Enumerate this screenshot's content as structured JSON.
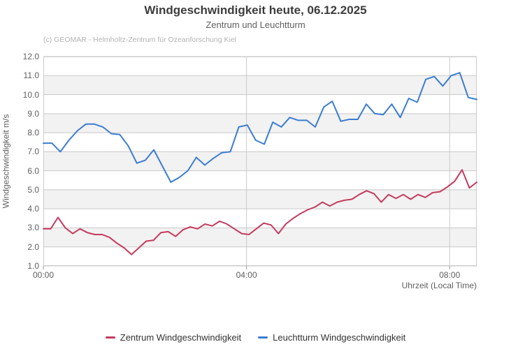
{
  "header": {
    "title": "Windgeschwindigkeit heute, 06.12.2025",
    "subtitle": "Zentrum und Leuchtturm",
    "credits": "(c) GEOMAR - Helmholtz-Zentrum für Ozeanforschung Kiel"
  },
  "colors": {
    "zentrum_line": "#c43b5f",
    "leuchtturm_line": "#3b7cd2",
    "band_fill": "#f2f2f2",
    "gridline": "#c9c9c9",
    "plot_border": "#cccccc",
    "tick": "#999999"
  },
  "chart_data": {
    "type": "line",
    "title": "Windgeschwindigkeit heute, 06.12.2025",
    "subtitle": "Zentrum und Leuchtturm",
    "xlabel": "Uhrzeit (Local Time)",
    "ylabel": "Windgeschwindigkeit m/s",
    "ylim": [
      1.0,
      12.0
    ],
    "grid": true,
    "alternating_bands": true,
    "legend_position": "bottom-center",
    "time_range": [
      "00:00",
      "08:30"
    ],
    "x_axis": {
      "title": "Uhrzeit (Local Time)",
      "tick_labels": [
        "00:00",
        "04:00",
        "08:00"
      ],
      "tick_minutes": [
        0,
        240,
        480
      ],
      "total_minutes": 512
    },
    "y_axis": {
      "title": "Windgeschwindigkeit m/s",
      "min": 1.0,
      "max": 12.0,
      "tick_step": 1.0,
      "tick_labels": [
        "1.0",
        "2.0",
        "3.0",
        "4.0",
        "5.0",
        "6.0",
        "7.0",
        "8.0",
        "9.0",
        "10.0",
        "11.0",
        "12.0"
      ]
    },
    "series": [
      {
        "name": "Zentrum Windgeschwindigkeit",
        "color": "#c43b5f",
        "values": [
          2.95,
          2.95,
          3.55,
          3.0,
          2.7,
          2.95,
          2.75,
          2.65,
          2.65,
          2.5,
          2.2,
          1.95,
          1.6,
          1.95,
          2.3,
          2.35,
          2.75,
          2.8,
          2.55,
          2.9,
          3.05,
          2.95,
          3.2,
          3.1,
          3.35,
          3.2,
          2.95,
          2.7,
          2.65,
          2.95,
          3.25,
          3.15,
          2.7,
          3.2,
          3.5,
          3.75,
          3.95,
          4.1,
          4.35,
          4.15,
          4.35,
          4.45,
          4.5,
          4.75,
          4.95,
          4.8,
          4.35,
          4.75,
          4.55,
          4.75,
          4.5,
          4.75,
          4.6,
          4.85,
          4.9,
          5.15,
          5.45,
          6.05,
          5.1,
          5.4
        ]
      },
      {
        "name": "Leuchtturm Windgeschwindigkeit",
        "color": "#3b7cd2",
        "values": [
          7.45,
          7.45,
          7.0,
          7.6,
          8.1,
          8.45,
          8.45,
          8.3,
          7.95,
          7.9,
          7.3,
          6.4,
          6.55,
          7.1,
          6.25,
          5.4,
          5.65,
          6.0,
          6.7,
          6.3,
          6.65,
          6.95,
          7.0,
          8.3,
          8.4,
          7.6,
          7.4,
          8.55,
          8.3,
          8.8,
          8.65,
          8.65,
          8.3,
          9.35,
          9.65,
          8.6,
          8.7,
          8.7,
          9.5,
          9.0,
          8.95,
          9.5,
          8.8,
          9.8,
          9.6,
          10.8,
          10.95,
          10.45,
          11.0,
          11.15,
          9.85,
          9.75
        ]
      }
    ]
  }
}
